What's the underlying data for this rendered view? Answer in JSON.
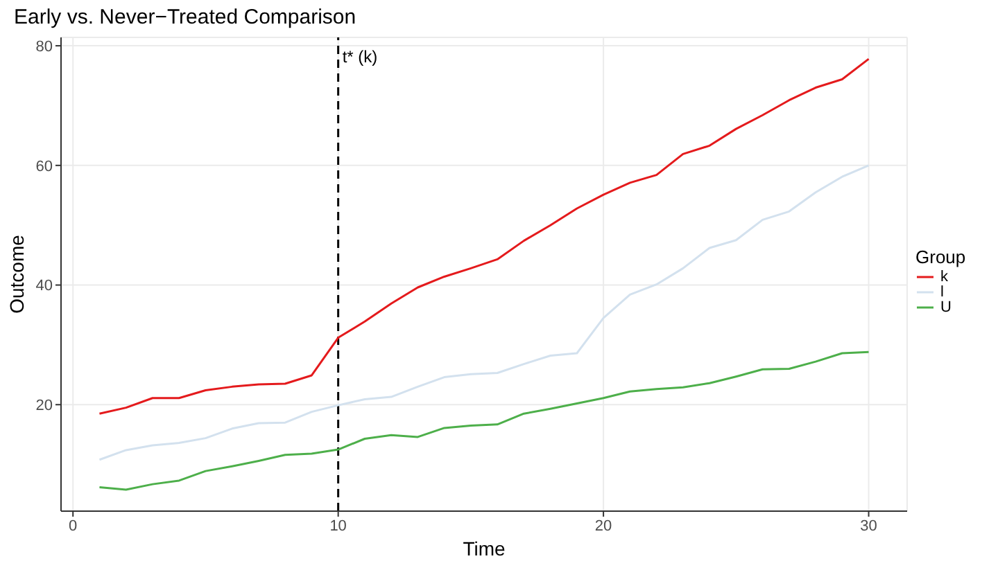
{
  "chart_data": {
    "type": "line",
    "title": "Early vs. Never−Treated Comparison",
    "xlabel": "Time",
    "ylabel": "Outcome",
    "legend_title": "Group",
    "x": [
      1,
      2,
      3,
      4,
      5,
      6,
      7,
      8,
      9,
      10,
      11,
      12,
      13,
      14,
      15,
      16,
      17,
      18,
      19,
      20,
      21,
      22,
      23,
      24,
      25,
      26,
      27,
      28,
      29,
      30
    ],
    "series": [
      {
        "name": "k",
        "color": "#e41a1c",
        "values": [
          18.5,
          19.5,
          21.1,
          21.1,
          22.4,
          23.0,
          23.4,
          23.5,
          24.9,
          31.2,
          33.9,
          36.9,
          39.6,
          41.4,
          42.8,
          44.3,
          47.4,
          50.0,
          52.8,
          55.1,
          57.1,
          58.4,
          61.9,
          63.3,
          66.1,
          68.4,
          70.9,
          73.0,
          74.4,
          77.8
        ]
      },
      {
        "name": "l",
        "color": "#d3e1ee",
        "values": [
          10.8,
          12.4,
          13.2,
          13.6,
          14.4,
          16.0,
          16.9,
          17.0,
          18.8,
          19.9,
          20.9,
          21.3,
          23.0,
          24.6,
          25.1,
          25.3,
          26.8,
          28.2,
          28.6,
          34.5,
          38.4,
          40.1,
          42.8,
          46.2,
          47.5,
          50.9,
          52.3,
          55.5,
          58.1,
          60.0
        ]
      },
      {
        "name": "U",
        "color": "#4daf4a",
        "values": [
          6.2,
          5.8,
          6.7,
          7.3,
          8.9,
          9.7,
          10.6,
          11.6,
          11.8,
          12.5,
          14.3,
          14.9,
          14.6,
          16.1,
          16.5,
          16.7,
          18.5,
          19.3,
          20.2,
          21.1,
          22.2,
          22.6,
          22.9,
          23.6,
          24.7,
          25.9,
          26.0,
          27.2,
          28.6,
          28.8
        ]
      }
    ],
    "xlim": [
      -0.45,
      31.45
    ],
    "xticks": [
      0,
      10,
      20,
      30
    ],
    "ylim": [
      2.2,
      81.4
    ],
    "yticks": [
      20,
      40,
      60,
      80
    ],
    "ref_lines": [
      {
        "axis": "x",
        "value": 10,
        "label": "t* (k)",
        "color": "#000000",
        "line_style": "dashed"
      }
    ],
    "grid": true,
    "legend": "right",
    "marker": "none",
    "line_style": "solid"
  }
}
